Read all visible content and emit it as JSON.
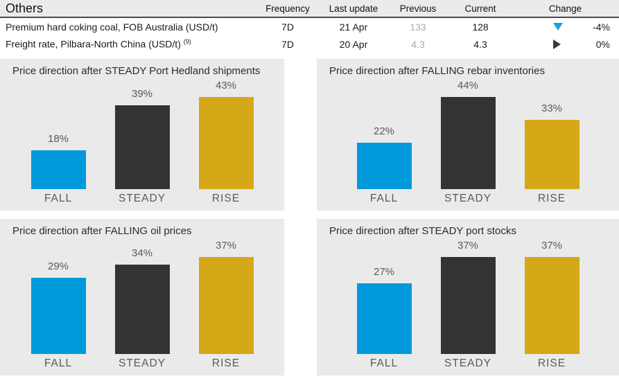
{
  "table": {
    "title": "Others",
    "columns": [
      "Frequency",
      "Last update",
      "Previous",
      "Current",
      "Change"
    ],
    "rows": [
      {
        "name": "Premium hard coking coal, FOB Australia (USD/t)",
        "superscript": "",
        "frequency": "7D",
        "last_update": "21 Apr",
        "previous": "133",
        "current": "128",
        "change_direction": "down",
        "change_percent": "-4%"
      },
      {
        "name": "Freight rate, Pilbara-North China (USD/t)",
        "superscript": "(9)",
        "frequency": "7D",
        "last_update": "20 Apr",
        "previous": "4.3",
        "current": "4.3",
        "change_direction": "right",
        "change_percent": "0%"
      }
    ]
  },
  "colors": {
    "fall_blue": "#009ADC",
    "steady_dark": "#333333",
    "rise_gold": "#D4A817",
    "change_down_arrow": "#1BA2DE",
    "change_neutral_arrow": "#3A3A3A",
    "panel_background": "#EAEAEA",
    "header_background": "#EBEBEB",
    "previous_value_gray": "#ABABAB",
    "label_gray": "#595959"
  },
  "chart_data": [
    {
      "type": "bar",
      "title": "Price direction after STEADY Port Hedland shipments",
      "categories": [
        "FALL",
        "STEADY",
        "RISE"
      ],
      "values": [
        18,
        39,
        43
      ],
      "value_suffix": "%",
      "colors": [
        "#009ADC",
        "#333333",
        "#D4A817"
      ],
      "ylim": [
        0,
        43
      ],
      "grid": false,
      "legend": "none"
    },
    {
      "type": "bar",
      "title": "Price direction after FALLING rebar inventories",
      "categories": [
        "FALL",
        "STEADY",
        "RISE"
      ],
      "values": [
        22,
        44,
        33
      ],
      "value_suffix": "%",
      "colors": [
        "#009ADC",
        "#333333",
        "#D4A817"
      ],
      "ylim": [
        0,
        44
      ],
      "grid": false,
      "legend": "none"
    },
    {
      "type": "bar",
      "title": "Price direction after FALLING oil prices",
      "categories": [
        "FALL",
        "STEADY",
        "RISE"
      ],
      "values": [
        29,
        34,
        37
      ],
      "value_suffix": "%",
      "colors": [
        "#009ADC",
        "#333333",
        "#D4A817"
      ],
      "ylim": [
        0,
        37
      ],
      "grid": false,
      "legend": "none"
    },
    {
      "type": "bar",
      "title": "Price direction after STEADY port stocks",
      "categories": [
        "FALL",
        "STEADY",
        "RISE"
      ],
      "values": [
        27,
        37,
        37
      ],
      "value_suffix": "%",
      "colors": [
        "#009ADC",
        "#333333",
        "#D4A817"
      ],
      "ylim": [
        0,
        37
      ],
      "grid": false,
      "legend": "none"
    }
  ]
}
